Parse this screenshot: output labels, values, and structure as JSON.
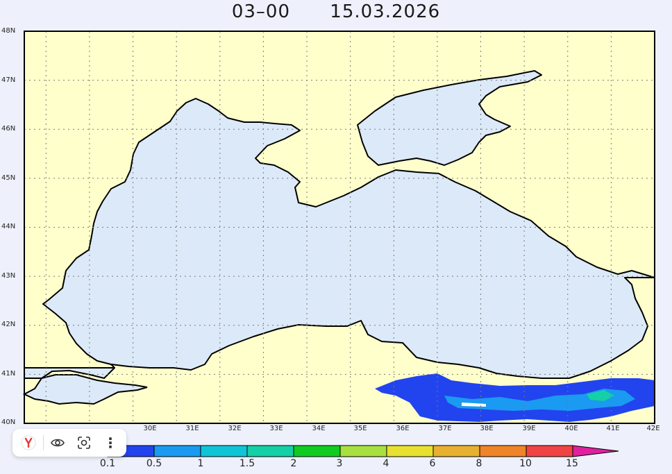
{
  "title": {
    "run": "03–00",
    "date": "15.03.2026"
  },
  "map": {
    "lat_ticks": [
      "48N",
      "47N",
      "46N",
      "45N",
      "44N",
      "43N",
      "42N",
      "41N",
      "40N"
    ],
    "lon_ticks": [
      "30E",
      "31E",
      "32E",
      "33E",
      "34E",
      "35E",
      "36E",
      "37E",
      "38E",
      "39E",
      "40E",
      "41E",
      "42E"
    ],
    "lat_range": [
      40,
      48
    ],
    "lon_range": [
      27.5,
      42
    ],
    "colors": {
      "land": "#ffffcc",
      "sea": "#dce9f8",
      "coast": "#000000"
    }
  },
  "colorbar": {
    "labels": [
      "0.1",
      "0.5",
      "1",
      "1.5",
      "2",
      "3",
      "4",
      "6",
      "8",
      "10",
      "15"
    ],
    "colors": [
      "#2244ee",
      "#1a9af0",
      "#10c4d8",
      "#14d0a6",
      "#10cc22",
      "#a8e040",
      "#e8e030",
      "#e8b030",
      "#f08428",
      "#f04444",
      "#e020a0"
    ]
  },
  "toolbar": {
    "items": [
      {
        "icon": "yandex-logo-icon",
        "glyph": "Y"
      },
      {
        "icon": "eye-icon"
      },
      {
        "icon": "camera-lens-icon"
      },
      {
        "icon": "more-vertical-icon",
        "glyph": "⋮"
      }
    ]
  }
}
